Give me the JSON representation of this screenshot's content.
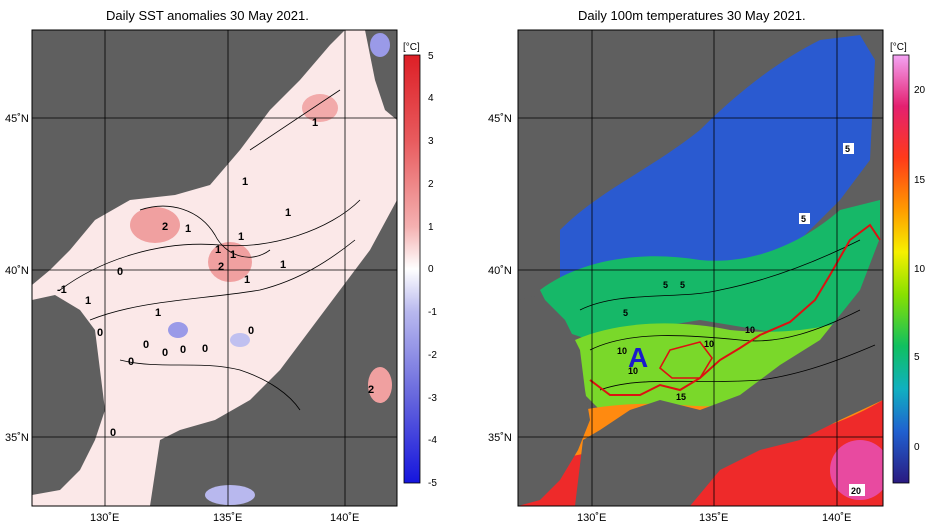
{
  "left_panel": {
    "title": "Daily SST anomalies 30 May 2021.",
    "unit": "[°C]",
    "lat_labels": [
      "45˚N",
      "40˚N",
      "35˚N"
    ],
    "lon_labels": [
      "130˚E",
      "135˚E",
      "140˚E"
    ],
    "colorbar_ticks": [
      "5",
      "4",
      "3",
      "2",
      "1",
      "0",
      "-1",
      "-2",
      "-3",
      "-4",
      "-5"
    ],
    "contour_labels": [
      "1",
      "1",
      "1",
      "2",
      "1",
      "1",
      "1",
      "2",
      "1",
      "1",
      "1",
      "-1",
      "0",
      "1",
      "1",
      "0",
      "0",
      "0",
      "0",
      "0",
      "0",
      "0",
      "2",
      "0"
    ],
    "colors": {
      "land": "#5f5f5f",
      "positive": "#e8888c",
      "negative": "#7777dd"
    }
  },
  "right_panel": {
    "title": "Daily 100m temperatures 30 May 2021.",
    "unit": "[°C]",
    "lat_labels": [
      "45˚N",
      "40˚N",
      "35˚N"
    ],
    "lon_labels": [
      "130˚E",
      "135˚E",
      "140˚E"
    ],
    "colorbar_ticks": [
      "20",
      "15",
      "10",
      "5",
      "0"
    ],
    "contour_labels": [
      "5",
      "5",
      "5",
      "5",
      "5",
      "10",
      "10",
      "10",
      "10",
      "15",
      "20"
    ],
    "marker_label": "A",
    "colors": {
      "land": "#5f5f5f",
      "front_line": "#dd1111",
      "marker": "#1a1acc"
    }
  }
}
